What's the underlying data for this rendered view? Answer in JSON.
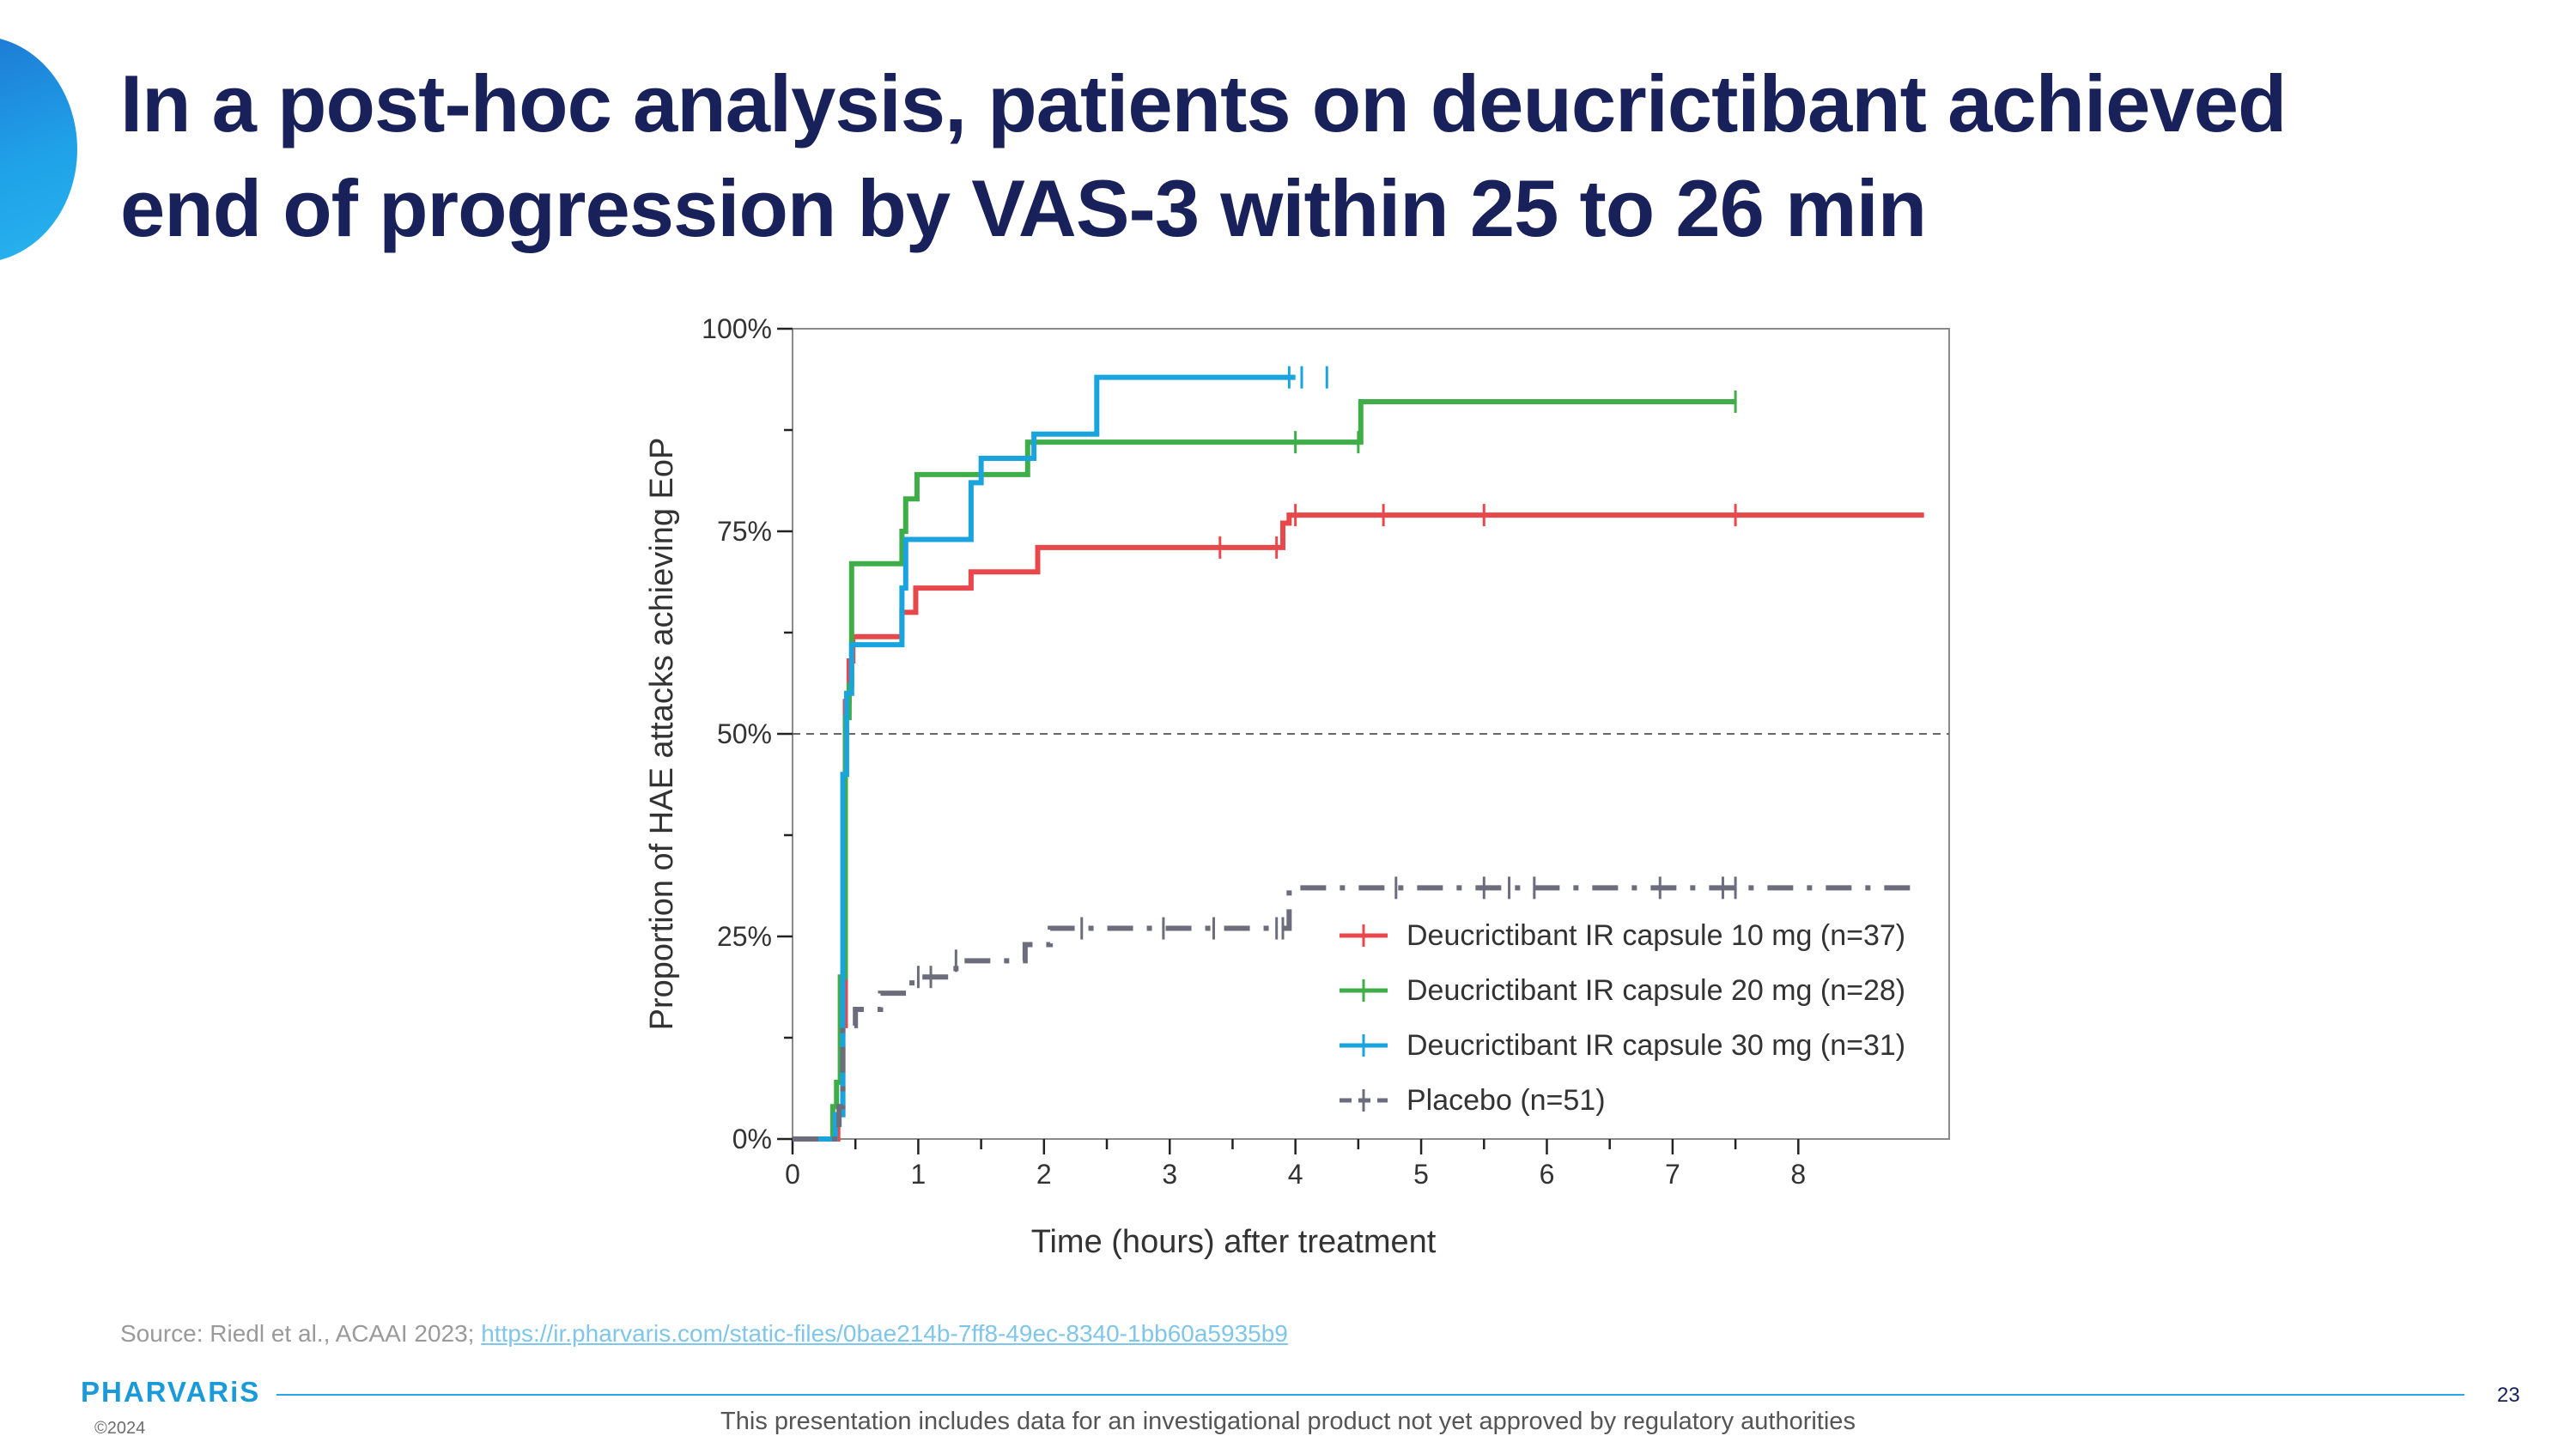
{
  "slide": {
    "title": "In a post-hoc analysis, patients on deucrictibant achieved end of progression by VAS-3 within 25 to 26 min",
    "source_text": "Source: Riedl et al., ACAAI 2023; ",
    "source_link": "https://ir.pharvaris.com/static-files/0bae214b-7ff8-49ec-8340-1bb60a5935b9",
    "logo": "PHARVARiS",
    "copyright": "©2024",
    "page_number": "23",
    "disclaimer": "This presentation includes data for an investigational product not yet approved by regulatory authorities"
  },
  "chart_data": {
    "type": "line",
    "subtype": "kaplan-meier step curves",
    "xlabel": "Time (hours) after treatment",
    "ylabel": "Proportion of HAE attacks achieving EoP",
    "xlim": [
      0,
      9.2
    ],
    "ylim": [
      0,
      100
    ],
    "x_ticks": [
      0,
      1,
      2,
      3,
      4,
      5,
      6,
      7,
      8
    ],
    "y_ticks": [
      0,
      25,
      50,
      75,
      100
    ],
    "y_tick_labels": [
      "0%",
      "25%",
      "50%",
      "75%",
      "100%"
    ],
    "reference_line": {
      "y": 50,
      "style": "dashed"
    },
    "legend_position": "lower-right",
    "series": [
      {
        "name": "Deucrictibant IR capsule 10 mg (n=37)",
        "color": "#e8484b",
        "dash": "solid",
        "steps": [
          [
            0,
            0
          ],
          [
            0.33,
            0
          ],
          [
            0.36,
            3
          ],
          [
            0.4,
            14
          ],
          [
            0.42,
            54
          ],
          [
            0.45,
            59
          ],
          [
            0.48,
            62
          ],
          [
            0.85,
            62
          ],
          [
            0.87,
            65
          ],
          [
            0.97,
            65
          ],
          [
            0.98,
            68
          ],
          [
            1.4,
            68
          ],
          [
            1.42,
            70
          ],
          [
            1.93,
            70
          ],
          [
            1.95,
            73
          ],
          [
            3.85,
            73
          ],
          [
            3.9,
            76
          ],
          [
            3.95,
            77
          ],
          [
            9,
            77
          ]
        ],
        "censor_x": [
          3.4,
          3.85,
          4.0,
          4.7,
          5.5,
          7.5
        ]
      },
      {
        "name": "Deucrictibant IR capsule 20 mg (n=28)",
        "color": "#3fae49",
        "dash": "solid",
        "steps": [
          [
            0,
            0
          ],
          [
            0.3,
            0
          ],
          [
            0.32,
            4
          ],
          [
            0.35,
            7
          ],
          [
            0.38,
            20
          ],
          [
            0.42,
            52
          ],
          [
            0.45,
            56
          ],
          [
            0.47,
            71
          ],
          [
            0.85,
            71
          ],
          [
            0.87,
            75
          ],
          [
            0.9,
            79
          ],
          [
            0.97,
            79
          ],
          [
            0.99,
            82
          ],
          [
            1.85,
            82
          ],
          [
            1.87,
            86
          ],
          [
            4.5,
            86
          ],
          [
            4.52,
            91
          ],
          [
            7.5,
            91
          ]
        ],
        "censor_x": [
          4.0,
          4.5,
          7.5
        ]
      },
      {
        "name": "Deucrictibant IR capsule 30 mg (n=31)",
        "color": "#1aa4dd",
        "dash": "solid",
        "steps": [
          [
            0,
            0
          ],
          [
            0.32,
            0
          ],
          [
            0.34,
            3
          ],
          [
            0.4,
            45
          ],
          [
            0.43,
            55
          ],
          [
            0.47,
            61
          ],
          [
            0.85,
            61
          ],
          [
            0.87,
            68
          ],
          [
            0.9,
            74
          ],
          [
            1.4,
            74
          ],
          [
            1.42,
            81
          ],
          [
            1.5,
            84
          ],
          [
            1.9,
            84
          ],
          [
            1.92,
            87
          ],
          [
            2.4,
            87
          ],
          [
            2.42,
            94
          ],
          [
            4.0,
            94
          ]
        ],
        "censor_x": [
          3.95,
          4.05,
          4.25
        ]
      },
      {
        "name": "Placebo (n=51)",
        "color": "#6c6c7d",
        "dash": "dashdot",
        "steps": [
          [
            0,
            0
          ],
          [
            0.35,
            0
          ],
          [
            0.37,
            4
          ],
          [
            0.4,
            14
          ],
          [
            0.5,
            16
          ],
          [
            0.7,
            18
          ],
          [
            0.95,
            20
          ],
          [
            1.3,
            22
          ],
          [
            1.85,
            24
          ],
          [
            2.05,
            26
          ],
          [
            3.9,
            26
          ],
          [
            3.95,
            31
          ],
          [
            8.9,
            31
          ]
        ],
        "censor_x": [
          1.0,
          1.1,
          1.3,
          2.3,
          2.95,
          3.35,
          3.85,
          3.9,
          4.8,
          5.5,
          5.7,
          5.9,
          6.9,
          7.4,
          7.5
        ]
      }
    ]
  }
}
